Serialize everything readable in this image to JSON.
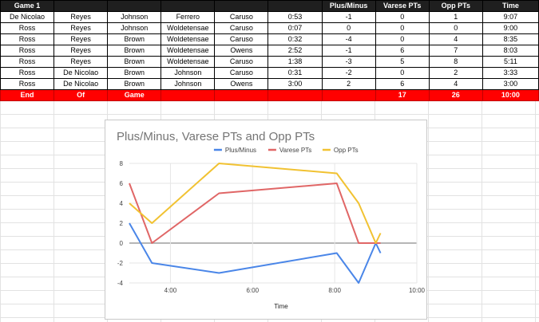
{
  "sheet": {
    "headers": [
      "Game 1",
      "",
      "",
      "",
      "",
      "",
      "Plus/Minus",
      "Varese PTs",
      "Opp PTs",
      "Time"
    ],
    "rows": [
      [
        "De Nicolao",
        "Reyes",
        "Johnson",
        "Ferrero",
        "Caruso",
        "0:53",
        "-1",
        "0",
        "1",
        "9:07"
      ],
      [
        "Ross",
        "Reyes",
        "Johnson",
        "Woldetensae",
        "Caruso",
        "0:07",
        "0",
        "0",
        "0",
        "9:00"
      ],
      [
        "Ross",
        "Reyes",
        "Brown",
        "Woldetensae",
        "Caruso",
        "0:32",
        "-4",
        "0",
        "4",
        "8:35"
      ],
      [
        "Ross",
        "Reyes",
        "Brown",
        "Woldetensae",
        "Owens",
        "2:52",
        "-1",
        "6",
        "7",
        "8:03"
      ],
      [
        "Ross",
        "Reyes",
        "Brown",
        "Woldetensae",
        "Caruso",
        "1:38",
        "-3",
        "5",
        "8",
        "5:11"
      ],
      [
        "Ross",
        "De Nicolao",
        "Brown",
        "Johnson",
        "Caruso",
        "0:31",
        "-2",
        "0",
        "2",
        "3:33"
      ],
      [
        "Ross",
        "De Nicolao",
        "Brown",
        "Johnson",
        "Owens",
        "3:00",
        "2",
        "6",
        "4",
        "3:00"
      ]
    ],
    "total_row": [
      "End",
      "Of",
      "Game",
      "",
      "",
      "",
      "",
      "17",
      "26",
      "10:00"
    ]
  },
  "chart_data": {
    "type": "line",
    "title": "Plus/Minus, Varese PTs and Opp PTs",
    "xlabel": "Time",
    "ylabel": "",
    "x": [
      "3:00",
      "3:33",
      "5:11",
      "8:03",
      "8:35",
      "9:00",
      "9:07"
    ],
    "x_ticks": [
      "4:00",
      "6:00",
      "8:00",
      "10:00"
    ],
    "y_ticks": [
      -4,
      -2,
      0,
      2,
      4,
      6,
      8
    ],
    "xlim": [
      "3:00",
      "10:00"
    ],
    "ylim": [
      -4,
      8
    ],
    "grid": true,
    "legend_position": "top",
    "series": [
      {
        "name": "Plus/Minus",
        "color": "#4a86e8",
        "values": [
          2,
          -2,
          -3,
          -1,
          -4,
          0,
          -1
        ]
      },
      {
        "name": "Varese PTs",
        "color": "#e06666",
        "values": [
          6,
          0,
          5,
          6,
          0,
          0,
          0
        ]
      },
      {
        "name": "Opp PTs",
        "color": "#f1c232",
        "values": [
          4,
          2,
          8,
          7,
          4,
          0,
          1
        ]
      }
    ]
  }
}
